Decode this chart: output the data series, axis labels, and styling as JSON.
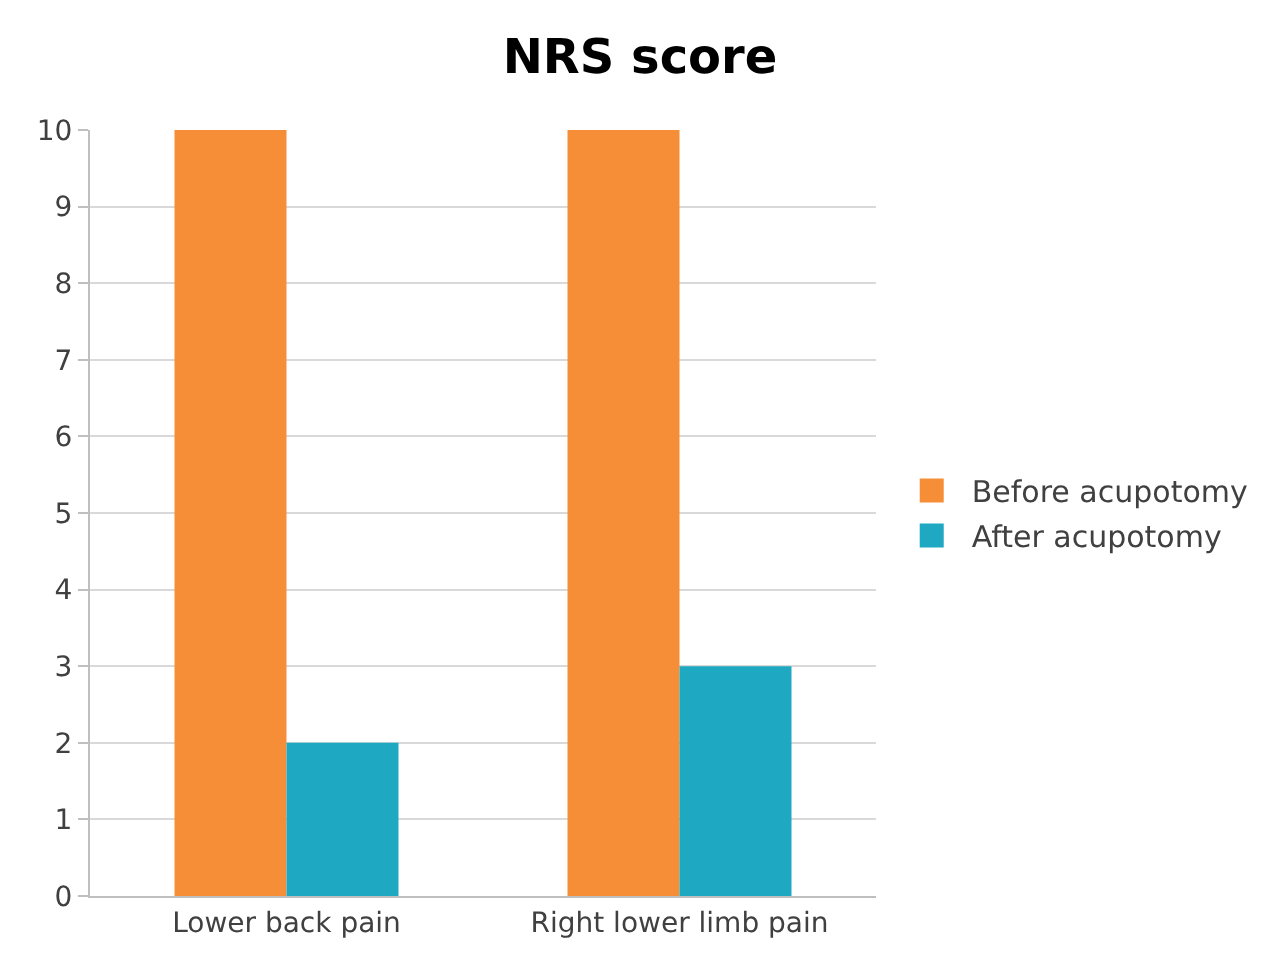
{
  "chart_data": {
    "type": "bar",
    "title": "NRS score",
    "categories": [
      "Lower back pain",
      "Right lower limb pain"
    ],
    "series": [
      {
        "name": "Before acupotomy",
        "color": "#f58e37",
        "values": [
          10,
          10
        ]
      },
      {
        "name": "After acupotomy",
        "color": "#1fa8c1",
        "values": [
          2,
          3
        ]
      }
    ],
    "ylim": [
      0,
      10
    ],
    "yticks": [
      0,
      1,
      2,
      3,
      4,
      5,
      6,
      7,
      8,
      9,
      10
    ],
    "grid": "y",
    "legend": "right"
  }
}
